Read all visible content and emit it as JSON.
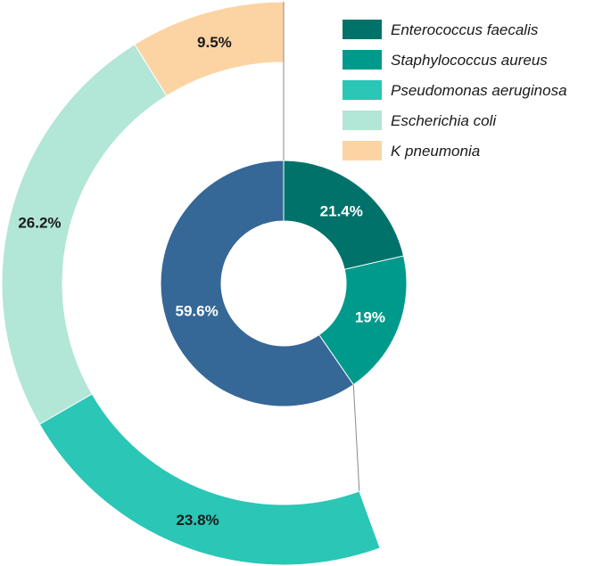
{
  "chart_data": {
    "type": "pie",
    "title": "",
    "legend_position": "top-right",
    "inner_ring": {
      "slices": [
        {
          "label": "21.4%",
          "value": 21.4,
          "color": "#00726a",
          "text_color": "#ffffff"
        },
        {
          "label": "19%",
          "value": 19.0,
          "color": "#009a8c",
          "text_color": "#ffffff"
        },
        {
          "label": "59.6%",
          "value": 59.6,
          "color": "#356797",
          "text_color": "#ffffff"
        }
      ]
    },
    "outer_ring": {
      "slices": [
        {
          "label": "23.8%",
          "value": 23.8,
          "color": "#2ac6b6",
          "text_color": "#1a1a1a"
        },
        {
          "label": "26.2%",
          "value": 26.2,
          "color": "#b2e6d7",
          "text_color": "#1a1a1a"
        },
        {
          "label": "9.5%",
          "value": 9.5,
          "color": "#fcd4a4",
          "text_color": "#1a1a1a"
        }
      ]
    },
    "legend": [
      {
        "name": "Enterococcus faecalis",
        "color": "#00726a"
      },
      {
        "name": "Staphylococcus aureus",
        "color": "#009a8c"
      },
      {
        "name": "Pseudomonas aeruginosa",
        "color": "#2ac6b6"
      },
      {
        "name": "Escherichia coli",
        "color": "#b2e6d7"
      },
      {
        "name": "K pneumonia",
        "color": "#fcd4a4"
      }
    ]
  }
}
